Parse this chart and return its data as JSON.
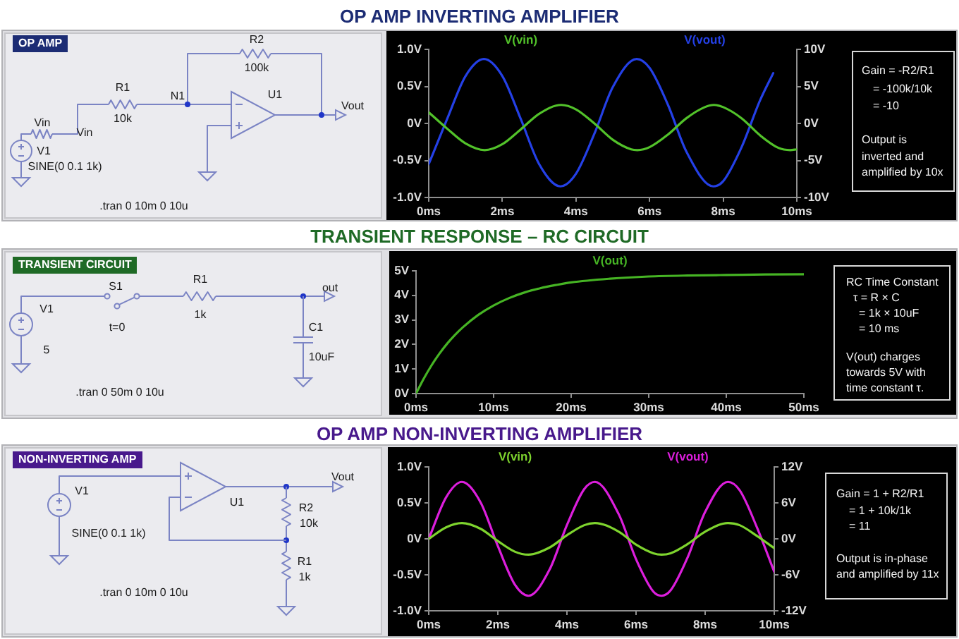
{
  "chart_data": [
    {
      "type": "line",
      "title": "OP AMP INVERTING AMPLIFIER",
      "xlim": [
        0,
        10
      ],
      "xticks": [
        {
          "value": 0,
          "label": "0ms"
        },
        {
          "value": 2,
          "label": "2ms"
        },
        {
          "value": 4,
          "label": "4ms"
        },
        {
          "value": 6,
          "label": "6ms"
        },
        {
          "value": 8,
          "label": "8ms"
        },
        {
          "value": 10,
          "label": "10ms"
        }
      ],
      "ylim": [
        -1,
        1
      ],
      "yticks": [
        {
          "value": -1,
          "label": "-1.0V"
        },
        {
          "value": -0.5,
          "label": "-0.5V"
        },
        {
          "value": 0,
          "label": "0V"
        },
        {
          "value": 0.5,
          "label": "0.5V"
        },
        {
          "value": 1,
          "label": "1.0V"
        }
      ],
      "y2lim": [
        -10,
        10
      ],
      "y2ticks": [
        {
          "value": -10,
          "label": "-10V"
        },
        {
          "value": -5,
          "label": "-5V"
        },
        {
          "value": 0,
          "label": "0V"
        },
        {
          "value": 5,
          "label": "5V"
        },
        {
          "value": 10,
          "label": "10V"
        }
      ],
      "legend": "top",
      "series": [
        {
          "name": "V(vin)",
          "color": "#52c22a",
          "x": [
            0,
            0.5,
            1,
            1.52,
            2,
            2.5,
            3,
            3.6,
            4,
            4.5,
            5,
            5.5,
            5.67,
            6,
            6.5,
            7,
            7.5,
            7.75,
            8,
            8.5,
            9,
            9.5,
            9.82,
            10
          ],
          "values": [
            0.15,
            -0.07,
            -0.27,
            -0.36,
            -0.28,
            -0.08,
            0.13,
            0.25,
            0.19,
            0,
            -0.22,
            -0.35,
            -0.36,
            -0.32,
            -0.15,
            0.07,
            0.22,
            0.25,
            0.22,
            0.07,
            -0.16,
            -0.33,
            -0.36,
            -0.35
          ]
        },
        {
          "name": "V(vout)",
          "color": "#2440e6",
          "axis": "y2",
          "x": [
            0,
            0.5,
            1,
            1.5,
            2,
            2.5,
            3,
            3.58,
            4,
            4.5,
            5,
            5.65,
            6,
            6.5,
            7,
            7.73,
            8,
            8.5,
            9,
            9.36
          ],
          "values": [
            -5.5,
            0.6,
            6.4,
            8.7,
            6.4,
            0.6,
            -5.5,
            -8.5,
            -6.8,
            -1.4,
            4.9,
            8.7,
            7.5,
            2.5,
            -3.8,
            -8.5,
            -7.8,
            -3.2,
            3.1,
            6.8
          ]
        }
      ],
      "annotations": [
        "OP AMP",
        "R2",
        "100k",
        "R1",
        "10k",
        "N1",
        "U1",
        "Vout",
        "Vin",
        "Vin",
        "V1",
        "SINE(0 0.1 1k)",
        ".tran 0 10m 0 10u",
        "Gain = -R2/R1",
        "= -100k/10k",
        "= -10",
        "Output is",
        "inverted and",
        "amplified by 10x"
      ]
    },
    {
      "type": "line",
      "title": "TRANSIENT RESPONSE – RC CIRCUIT",
      "xlim": [
        0,
        50
      ],
      "xticks": [
        {
          "value": 0,
          "label": "0ms"
        },
        {
          "value": 10,
          "label": "10ms"
        },
        {
          "value": 20,
          "label": "20ms"
        },
        {
          "value": 30,
          "label": "30ms"
        },
        {
          "value": 40,
          "label": "40ms"
        },
        {
          "value": 50,
          "label": "50ms"
        }
      ],
      "ylim": [
        0,
        5
      ],
      "yticks": [
        {
          "value": 0,
          "label": "0V"
        },
        {
          "value": 1,
          "label": "1V"
        },
        {
          "value": 2,
          "label": "2V"
        },
        {
          "value": 3,
          "label": "3V"
        },
        {
          "value": 4,
          "label": "4V"
        },
        {
          "value": 5,
          "label": "5V"
        }
      ],
      "legend": "top",
      "series": [
        {
          "name": "V(out)",
          "color": "#46b424",
          "x": [
            0,
            1,
            2,
            3,
            4,
            5,
            6,
            8,
            10,
            12,
            14,
            16,
            18,
            20,
            25,
            30,
            35,
            40,
            45,
            50
          ],
          "values": [
            0,
            0.61,
            1.15,
            1.62,
            2.03,
            2.38,
            2.69,
            3.2,
            3.59,
            3.89,
            4.12,
            4.29,
            4.42,
            4.53,
            4.68,
            4.77,
            4.81,
            4.83,
            4.85,
            4.86
          ]
        }
      ],
      "annotations": [
        "TRANSIENT CIRCUIT",
        "S1",
        "R1",
        "out",
        "V1",
        "1k",
        "t=0",
        "C1",
        "5",
        "10uF",
        ".tran 0 50m 0 10u",
        "RC Time Constant",
        "τ = R × C",
        "= 1k × 10uF",
        "= 10 ms",
        "V(out) charges",
        "towards 5V with",
        "time constant τ."
      ]
    },
    {
      "type": "line",
      "title": "OP AMP NON-INVERTING AMPLIFIER",
      "xlim": [
        0,
        10
      ],
      "xticks": [
        {
          "value": 0,
          "label": "0ms"
        },
        {
          "value": 2,
          "label": "2ms"
        },
        {
          "value": 4,
          "label": "4ms"
        },
        {
          "value": 6,
          "label": "6ms"
        },
        {
          "value": 8,
          "label": "8ms"
        },
        {
          "value": 10,
          "label": "10ms"
        }
      ],
      "ylim": [
        -1,
        1
      ],
      "yticks": [
        {
          "value": -1,
          "label": "-1.0V"
        },
        {
          "value": -0.5,
          "label": "-0.5V"
        },
        {
          "value": 0,
          "label": "0V"
        },
        {
          "value": 0.5,
          "label": "0.5V"
        },
        {
          "value": 1,
          "label": "1.0V"
        }
      ],
      "y2lim": [
        -12,
        12
      ],
      "y2ticks": [
        {
          "value": -12,
          "label": "-12V"
        },
        {
          "value": -6,
          "label": "-6V"
        },
        {
          "value": 0,
          "label": "0V"
        },
        {
          "value": 6,
          "label": "6V"
        },
        {
          "value": 12,
          "label": "12V"
        }
      ],
      "legend": "top",
      "series": [
        {
          "name": "V(vin)",
          "color": "#7ed42e",
          "x": [
            0,
            0.5,
            0.96,
            1.5,
            2,
            2.5,
            2.89,
            3.5,
            4,
            4.5,
            4.81,
            5.5,
            6,
            6.5,
            6.74,
            7,
            7.5,
            8,
            8.66,
            9,
            9.5,
            10
          ],
          "values": [
            0,
            0.16,
            0.22,
            0.14,
            -0.03,
            -0.18,
            -0.22,
            -0.12,
            0.05,
            0.19,
            0.22,
            0.1,
            -0.08,
            -0.2,
            -0.22,
            -0.2,
            -0.07,
            0.1,
            0.22,
            0.19,
            0.04,
            -0.13
          ]
        },
        {
          "name": "V(vout)",
          "color": "#dc1edc",
          "axis": "y2",
          "x": [
            0,
            0.5,
            0.96,
            1.5,
            2,
            2.5,
            2.89,
            3.5,
            4,
            4.5,
            4.81,
            5.5,
            6,
            6.5,
            6.74,
            7,
            7.5,
            8,
            8.66,
            9,
            9.5,
            10
          ],
          "values": [
            0,
            6.9,
            9.5,
            6.1,
            -1.2,
            -7.7,
            -9.5,
            -5.1,
            2.3,
            8.3,
            9.5,
            4.1,
            -3.4,
            -8.8,
            -9.5,
            -8.6,
            -3,
            4.5,
            9.5,
            8.1,
            1.9,
            -5.5
          ]
        }
      ],
      "annotations": [
        "NON-INVERTING AMP",
        "Vout",
        "V1",
        "U1",
        "R2",
        "10k",
        "SINE(0 0.1 1k)",
        "R1",
        "1k",
        ".tran 0 10m 0 10u",
        "Gain = 1 + R2/R1",
        "= 1 + 10k/1k",
        "= 11",
        "Output is in-phase",
        "and amplified by 11x"
      ]
    }
  ]
}
